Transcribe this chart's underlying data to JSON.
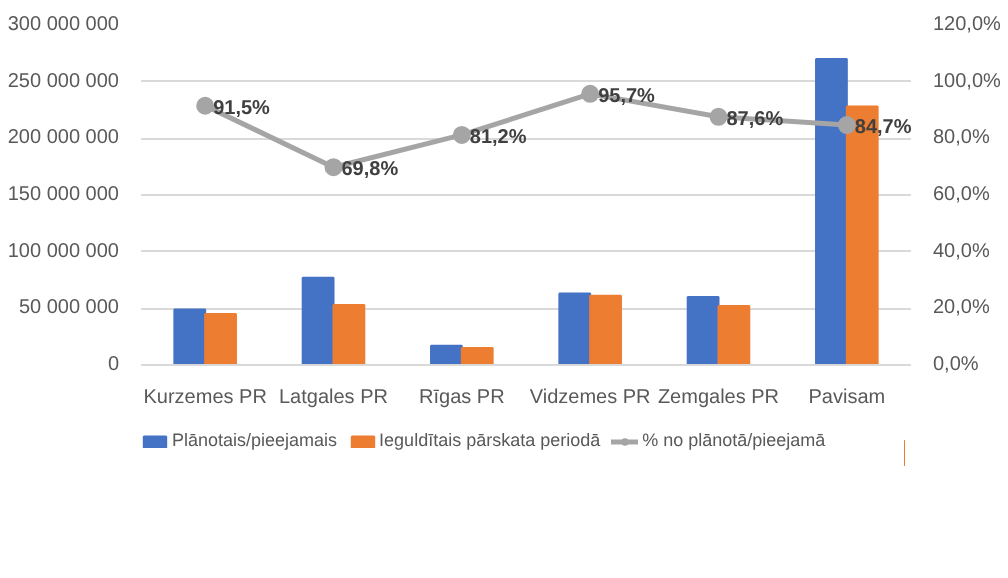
{
  "chart_data": {
    "type": "bar",
    "categories": [
      "Kurzemes PR",
      "Latgales PR",
      "Rīgas PR",
      "Vidzemes PR",
      "Zemgales PR",
      "Pavisam"
    ],
    "series": [
      {
        "name": "Plānotais/pieejamais",
        "color": "#4472c4",
        "values": [
          49000000,
          77000000,
          17000000,
          63000000,
          60000000,
          270000000
        ]
      },
      {
        "name": "Ieguldītais pārskata periodā",
        "color": "#ed7d31",
        "values": [
          45000000,
          53000000,
          15000000,
          61000000,
          52000000,
          228000000
        ]
      },
      {
        "name": "% no plānotā/pieejamā",
        "type": "line",
        "axis": "y2",
        "color": "#a5a5a5",
        "marker": "circle",
        "values": [
          91.5,
          69.8,
          81.2,
          95.7,
          87.6,
          84.7
        ],
        "value_labels": [
          "91,5%",
          "69,8%",
          "81,2%",
          "95,7%",
          "87,6%",
          "84,7%"
        ]
      }
    ],
    "ylim": [
      0,
      300000000
    ],
    "yticks": [
      {
        "value": 0,
        "label": "0"
      },
      {
        "value": 50000000,
        "label": "50 000 000"
      },
      {
        "value": 100000000,
        "label": "100 000 000"
      },
      {
        "value": 150000000,
        "label": "150 000 000"
      },
      {
        "value": 200000000,
        "label": "200 000 000"
      },
      {
        "value": 250000000,
        "label": "250 000 000"
      },
      {
        "value": 300000000,
        "label": "300 000 000"
      }
    ],
    "y2lim": [
      0,
      120
    ],
    "y2ticks": [
      {
        "value": 0,
        "label": "0,0%"
      },
      {
        "value": 20,
        "label": "20,0%"
      },
      {
        "value": 40,
        "label": "40,0%"
      },
      {
        "value": 60,
        "label": "60,0%"
      },
      {
        "value": 80,
        "label": "80,0%"
      },
      {
        "value": 100,
        "label": "100,0%"
      },
      {
        "value": 120,
        "label": "120,0%"
      }
    ],
    "grid": "y",
    "legend": "bottom"
  }
}
